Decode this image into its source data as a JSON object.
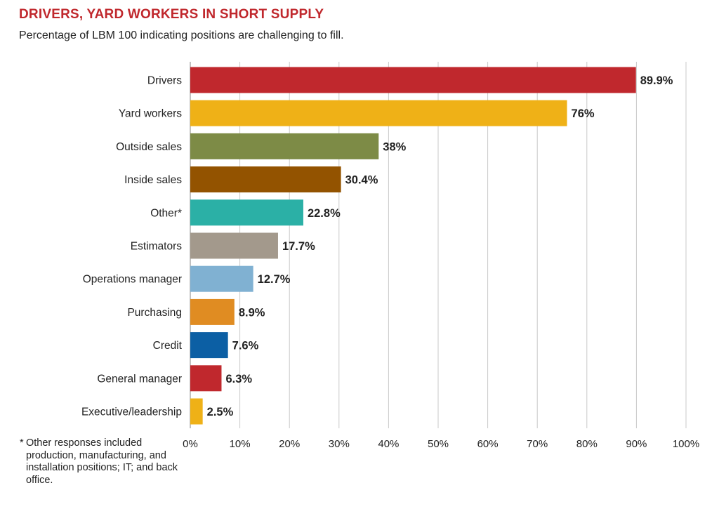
{
  "title": "DRIVERS, YARD WORKERS IN SHORT SUPPLY",
  "subtitle": "Percentage of LBM 100 indicating positions are challenging to fill.",
  "footnote": {
    "mark": "*",
    "text": "Other responses included production, manufacturing, and installation positions; IT; and back office."
  },
  "chart_data": {
    "type": "bar",
    "orientation": "horizontal",
    "categories": [
      "Drivers",
      "Yard workers",
      "Outside sales",
      "Inside sales",
      "Other*",
      "Estimators",
      "Operations manager",
      "Purchasing",
      "Credit",
      "General manager",
      "Executive/leadership"
    ],
    "values": [
      89.9,
      76,
      38,
      30.4,
      22.8,
      17.7,
      12.7,
      8.9,
      7.6,
      6.3,
      2.5
    ],
    "value_labels": [
      "89.9%",
      "76%",
      "38%",
      "30.4%",
      "22.8%",
      "17.7%",
      "12.7%",
      "8.9%",
      "7.6%",
      "6.3%",
      "2.5%"
    ],
    "colors": [
      "#c0282d",
      "#efb117",
      "#7d8b46",
      "#935300",
      "#2bb0a6",
      "#a3998c",
      "#80b1d2",
      "#e08c22",
      "#0c5fa4",
      "#c0282d",
      "#efb117"
    ],
    "xlim": [
      0,
      100
    ],
    "xticks": [
      0,
      10,
      20,
      30,
      40,
      50,
      60,
      70,
      80,
      90,
      100
    ],
    "xtick_labels": [
      "0%",
      "10%",
      "20%",
      "30%",
      "40%",
      "50%",
      "60%",
      "70%",
      "80%",
      "90%",
      "100%"
    ],
    "grid": true,
    "legend": "none"
  }
}
